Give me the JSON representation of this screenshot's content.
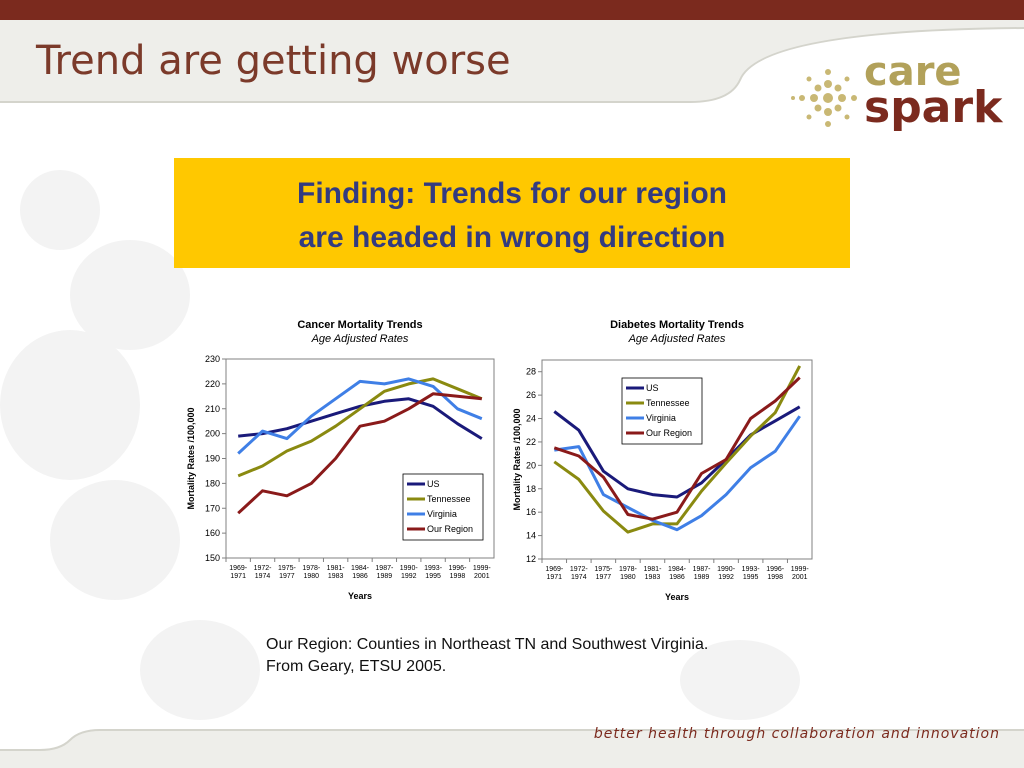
{
  "slide": {
    "title": "Trend are getting worse",
    "finding_line1": "Finding: Trends for our region",
    "finding_line2": "are headed in wrong direction",
    "footnote_line1": "Our Region: Counties in Northeast TN and Southwest Virginia.",
    "footnote_line2": "From Geary, ETSU 2005.",
    "tagline": "better health through collaboration and innovation"
  },
  "logo": {
    "word1": "care",
    "word2": "spark",
    "icon": "starburst-dots-icon"
  },
  "colors": {
    "US": "#1a1a7a",
    "Tennessee": "#8a8a10",
    "Virginia": "#3f7fe6",
    "Our Region": "#8a1a1a",
    "finding_bg": "#ffc800",
    "title": "#7b3a2a"
  },
  "chart_data": [
    {
      "type": "line",
      "title": "Cancer Mortality Trends",
      "subtitle": "Age Adjusted Rates",
      "xlabel": "Years",
      "ylabel": "Mortality Rates /100,000",
      "ylim": [
        150,
        230
      ],
      "yticks": [
        150,
        160,
        170,
        180,
        190,
        200,
        210,
        220,
        230
      ],
      "categories": [
        "1969-1971",
        "1972-1974",
        "1975-1977",
        "1978-1980",
        "1981-1983",
        "1984-1986",
        "1987-1989",
        "1990-1992",
        "1993-1995",
        "1996-1998",
        "1999-2001"
      ],
      "category_lines": [
        [
          "1969-",
          "1971"
        ],
        [
          "1972-",
          "1974"
        ],
        [
          "1975-",
          "1977"
        ],
        [
          "1978-",
          "1980"
        ],
        [
          "1981-",
          "1983"
        ],
        [
          "1984-",
          "1986"
        ],
        [
          "1987-",
          "1989"
        ],
        [
          "1990-",
          "1992"
        ],
        [
          "1993-",
          "1995"
        ],
        [
          "1996-",
          "1998"
        ],
        [
          "1999-",
          "2001"
        ]
      ],
      "legend": "bottom-right",
      "series": [
        {
          "name": "US",
          "values": [
            199,
            200,
            202,
            205,
            208,
            211,
            213,
            214,
            211,
            204,
            198
          ]
        },
        {
          "name": "Tennessee",
          "values": [
            183,
            187,
            193,
            197,
            203,
            210,
            217,
            220,
            222,
            218,
            214
          ]
        },
        {
          "name": "Virginia",
          "values": [
            192,
            201,
            198,
            207,
            214,
            221,
            220,
            222,
            219,
            210,
            206
          ]
        },
        {
          "name": "Our Region",
          "values": [
            168,
            177,
            175,
            180,
            190,
            203,
            205,
            210,
            216,
            215,
            214
          ]
        }
      ]
    },
    {
      "type": "line",
      "title": "Diabetes Mortality Trends",
      "subtitle": "Age Adjusted Rates",
      "xlabel": "Years",
      "ylabel": "Mortality Rates /100,000",
      "ylim": [
        12,
        29
      ],
      "yticks": [
        12,
        14,
        16,
        18,
        20,
        22,
        24,
        26,
        28
      ],
      "categories": [
        "1969-1971",
        "1972-1974",
        "1975-1977",
        "1978-1980",
        "1981-1983",
        "1984-1986",
        "1987-1989",
        "1990-1992",
        "1993-1995",
        "1996-1998",
        "1999-2001"
      ],
      "category_lines": [
        [
          "1969-",
          "1971"
        ],
        [
          "1972-",
          "1974"
        ],
        [
          "1975-",
          "1977"
        ],
        [
          "1978-",
          "1980"
        ],
        [
          "1981-",
          "1983"
        ],
        [
          "1984-",
          "1986"
        ],
        [
          "1987-",
          "1989"
        ],
        [
          "1990-",
          "1992"
        ],
        [
          "1993-",
          "1995"
        ],
        [
          "1996-",
          "1998"
        ],
        [
          "1999-",
          "2001"
        ]
      ],
      "legend": "top-center",
      "series": [
        {
          "name": "US",
          "values": [
            24.6,
            23.0,
            19.5,
            18.0,
            17.5,
            17.3,
            18.5,
            20.5,
            22.6,
            23.8,
            25.0
          ]
        },
        {
          "name": "Tennessee",
          "values": [
            20.3,
            18.8,
            16.1,
            14.3,
            15.0,
            15.0,
            17.8,
            20.2,
            22.5,
            24.5,
            28.5
          ]
        },
        {
          "name": "Virginia",
          "values": [
            21.3,
            21.6,
            17.5,
            16.4,
            15.3,
            14.5,
            15.7,
            17.5,
            19.8,
            21.2,
            24.2
          ]
        },
        {
          "name": "Our Region",
          "values": [
            21.5,
            20.8,
            19.0,
            15.8,
            15.4,
            16.0,
            19.3,
            20.5,
            24.0,
            25.5,
            27.5
          ]
        }
      ]
    }
  ]
}
